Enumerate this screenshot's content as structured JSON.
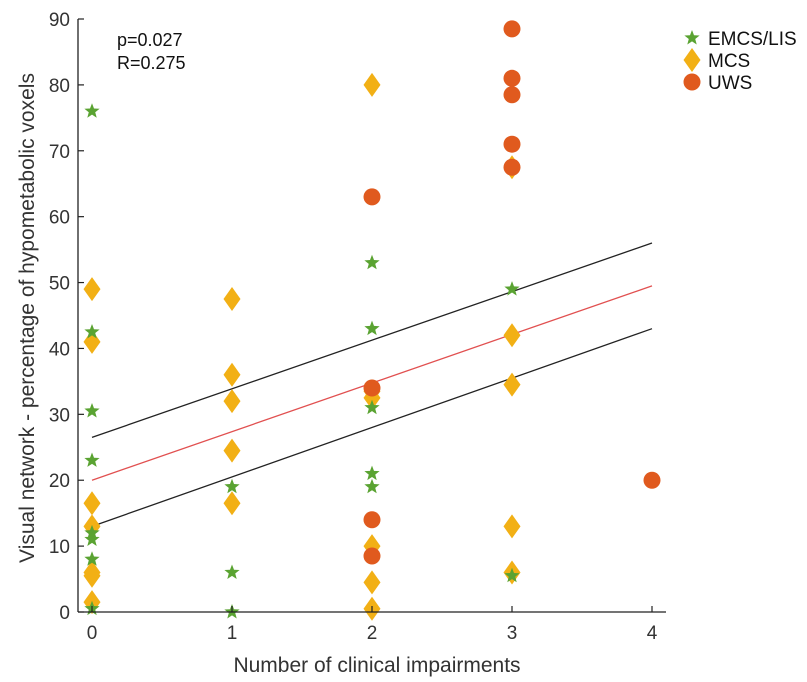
{
  "chart_data": {
    "type": "scatter",
    "xlabel": "Number of clinical impairments",
    "ylabel": "Visual network - percentage of hypometabolic voxels",
    "xlim": [
      -0.1,
      4.1
    ],
    "ylim": [
      0,
      90
    ],
    "xticks": [
      0,
      1,
      2,
      3,
      4
    ],
    "yticks": [
      0,
      10,
      20,
      30,
      40,
      50,
      60,
      70,
      80,
      90
    ],
    "grid": false,
    "legend_position": "top-right",
    "annotations": [
      "p=0.027",
      "R=0.275"
    ],
    "series": [
      {
        "name": "EMCS/LIS",
        "marker": "star",
        "color": "#5aa332",
        "points": [
          [
            0,
            76
          ],
          [
            0,
            42.5
          ],
          [
            0,
            30.5
          ],
          [
            0,
            23
          ],
          [
            0,
            12
          ],
          [
            0,
            11
          ],
          [
            0,
            8
          ],
          [
            0,
            0.5
          ],
          [
            1,
            19
          ],
          [
            1,
            6
          ],
          [
            1,
            0
          ],
          [
            2,
            53
          ],
          [
            2,
            43
          ],
          [
            2,
            31
          ],
          [
            2,
            21
          ],
          [
            2,
            19
          ],
          [
            3,
            49
          ],
          [
            3,
            5.5
          ]
        ]
      },
      {
        "name": "MCS",
        "marker": "diamond",
        "color": "#f2b015",
        "points": [
          [
            0,
            49
          ],
          [
            0,
            41
          ],
          [
            0,
            16.5
          ],
          [
            0,
            13
          ],
          [
            0,
            6
          ],
          [
            0,
            5.5
          ],
          [
            0,
            1.5
          ],
          [
            1,
            47.5
          ],
          [
            1,
            36
          ],
          [
            1,
            32
          ],
          [
            1,
            24.5
          ],
          [
            1,
            16.5
          ],
          [
            2,
            80
          ],
          [
            2,
            33.5
          ],
          [
            2,
            32.5
          ],
          [
            2,
            10
          ],
          [
            2,
            4.5
          ],
          [
            2,
            0.5
          ],
          [
            3,
            67.5
          ],
          [
            3,
            42
          ],
          [
            3,
            34.5
          ],
          [
            3,
            13
          ],
          [
            3,
            6
          ]
        ]
      },
      {
        "name": "UWS",
        "marker": "circle",
        "color": "#e05a1e",
        "points": [
          [
            2,
            63
          ],
          [
            2,
            34
          ],
          [
            2,
            14
          ],
          [
            2,
            8.5
          ],
          [
            3,
            88.5
          ],
          [
            3,
            81
          ],
          [
            3,
            78.5
          ],
          [
            3,
            71
          ],
          [
            3,
            67.5
          ],
          [
            4,
            20
          ]
        ]
      }
    ],
    "fit": {
      "regression": {
        "color": "#e15050",
        "from": [
          0,
          20
        ],
        "to": [
          4,
          49.5
        ]
      },
      "upper_bound": {
        "color": "#222222",
        "from": [
          0,
          26.5
        ],
        "to": [
          4,
          56
        ]
      },
      "lower_bound": {
        "color": "#222222",
        "from": [
          0,
          13
        ],
        "to": [
          4,
          43
        ]
      }
    }
  }
}
